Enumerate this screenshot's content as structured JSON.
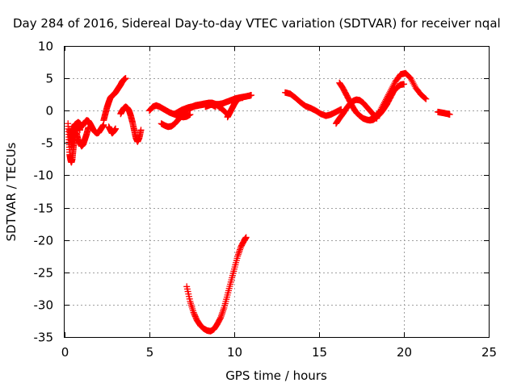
{
  "chart_data": {
    "type": "scatter",
    "title": "Day 284 of 2016, Sidereal Day-to-day VTEC variation (SDTVAR) for receiver nqal",
    "xlabel": "GPS time / hours",
    "ylabel": "SDTVAR / TECUs",
    "xlim": [
      0,
      25
    ],
    "ylim": [
      -35,
      10
    ],
    "xticks": [
      0,
      5,
      10,
      15,
      20,
      25
    ],
    "yticks": [
      10,
      5,
      0,
      -5,
      -10,
      -15,
      -20,
      -25,
      -30,
      -35
    ],
    "grid": true,
    "marker": "plus",
    "color": "#ff0000",
    "series": [
      {
        "x": [
          0.2,
          0.25,
          0.3,
          0.35,
          0.4,
          0.45,
          0.5,
          0.55,
          0.6,
          0.65,
          0.7,
          0.75,
          0.8,
          0.85,
          0.9
        ],
        "y": [
          -2.0,
          -4.5,
          -6.8,
          -7.6,
          -8.0,
          -7.5,
          -6.2,
          -5.0,
          -4.0,
          -3.0,
          -2.5,
          -2.0,
          -2.2,
          -2.5,
          -3.0
        ]
      },
      {
        "x": [
          0.3,
          0.35,
          0.4,
          0.45,
          0.5,
          0.55,
          0.6
        ],
        "y": [
          -3.0,
          -4.2,
          -5.5,
          -4.0,
          -3.2,
          -2.6,
          -2.2
        ]
      },
      {
        "x": [
          0.7,
          0.8,
          0.9,
          1.0,
          1.1,
          1.2,
          1.3,
          1.4
        ],
        "y": [
          -3.5,
          -4.5,
          -5.0,
          -5.5,
          -5.2,
          -4.4,
          -3.6,
          -2.6
        ]
      },
      {
        "x": [
          0.6,
          0.7,
          0.8,
          0.9,
          1.0,
          1.1,
          1.2,
          1.3,
          1.4,
          1.5,
          1.6,
          1.7,
          1.8,
          1.9,
          2.0,
          2.1,
          2.2,
          2.3
        ],
        "y": [
          -2.2,
          -2.0,
          -1.8,
          -2.0,
          -2.4,
          -2.2,
          -1.8,
          -1.5,
          -1.6,
          -2.0,
          -2.5,
          -3.0,
          -3.3,
          -3.5,
          -3.4,
          -3.0,
          -2.6,
          -2.2
        ]
      },
      {
        "x": [
          2.3,
          2.4,
          2.5,
          2.6,
          2.7,
          2.8,
          2.9,
          3.0,
          3.1,
          3.2,
          3.3,
          3.4,
          3.5,
          3.6
        ],
        "y": [
          -1.5,
          -0.5,
          0.5,
          1.3,
          2.0,
          2.3,
          2.5,
          2.8,
          3.2,
          3.6,
          4.0,
          4.5,
          4.8,
          5.0
        ]
      },
      {
        "x": [
          2.6,
          2.7,
          2.8,
          2.9,
          3.0
        ],
        "y": [
          -2.5,
          -3.0,
          -3.5,
          -3.2,
          -2.8
        ]
      },
      {
        "x": [
          3.3,
          3.4,
          3.5,
          3.6,
          3.7,
          3.8,
          3.9,
          4.0,
          4.1,
          4.2,
          4.3,
          4.4,
          4.5
        ],
        "y": [
          -0.5,
          0.0,
          0.4,
          0.6,
          0.4,
          0.0,
          -0.8,
          -1.8,
          -3.0,
          -4.2,
          -4.8,
          -4.2,
          -3.0
        ]
      },
      {
        "x": [
          5.0,
          5.2,
          5.4,
          5.6,
          5.8,
          6.0,
          6.2,
          6.4,
          6.6,
          6.8,
          7.0,
          7.2,
          7.4
        ],
        "y": [
          0.0,
          0.6,
          0.8,
          0.6,
          0.3,
          0.0,
          -0.3,
          -0.5,
          -0.7,
          -0.9,
          -1.0,
          -0.9,
          -0.6
        ]
      },
      {
        "x": [
          5.7,
          5.9,
          6.1,
          6.3,
          6.5,
          6.7,
          6.9,
          7.1,
          7.3,
          7.5,
          7.7,
          7.9,
          8.1,
          8.3,
          8.5,
          8.7,
          8.9
        ],
        "y": [
          -2.0,
          -2.3,
          -2.5,
          -2.4,
          -2.0,
          -1.4,
          -0.8,
          -0.2,
          0.3,
          0.5,
          0.7,
          0.8,
          0.9,
          1.0,
          1.0,
          0.9,
          0.6
        ]
      },
      {
        "x": [
          6.5,
          6.7,
          6.9,
          7.1,
          7.3,
          7.5,
          7.7,
          7.9,
          8.1,
          8.3,
          8.5,
          8.7,
          8.9,
          9.1,
          9.3,
          9.5
        ],
        "y": [
          -0.5,
          -0.2,
          0.1,
          0.3,
          0.5,
          0.6,
          0.8,
          0.9,
          1.0,
          1.1,
          1.2,
          1.2,
          1.0,
          0.6,
          0.2,
          -0.3
        ]
      },
      {
        "x": [
          8.3,
          8.5,
          8.7,
          8.9,
          9.1,
          9.3,
          9.5,
          9.7,
          9.9,
          10.1,
          10.3,
          10.5,
          10.7,
          10.9,
          11.0
        ],
        "y": [
          0.6,
          0.8,
          1.0,
          1.0,
          1.0,
          1.1,
          1.3,
          1.5,
          1.7,
          1.9,
          2.0,
          2.1,
          2.2,
          2.3,
          2.4
        ]
      },
      {
        "x": [
          9.6,
          9.7,
          9.8,
          9.9,
          10.0,
          10.1,
          10.2,
          10.3,
          10.4,
          10.5
        ],
        "y": [
          -1.0,
          -0.5,
          0.0,
          0.5,
          1.0,
          1.4,
          1.7,
          1.9,
          2.0,
          2.0
        ]
      },
      {
        "x": [
          7.2,
          7.4,
          7.6,
          7.8,
          8.0,
          8.2,
          8.4,
          8.6,
          8.8,
          9.0,
          9.2,
          9.4,
          9.6,
          9.8,
          10.0,
          10.2,
          10.4,
          10.6,
          10.7
        ],
        "y": [
          -27.2,
          -29.5,
          -31.2,
          -32.4,
          -33.2,
          -33.7,
          -34.0,
          -34.1,
          -33.8,
          -33.0,
          -32.0,
          -30.5,
          -28.5,
          -26.5,
          -24.5,
          -22.5,
          -21.0,
          -20.0,
          -19.6
        ]
      },
      {
        "x": [
          13.0,
          13.3,
          13.6,
          13.9,
          14.2,
          14.5,
          14.8,
          15.1,
          15.4,
          15.7,
          16.0,
          16.3
        ],
        "y": [
          2.8,
          2.6,
          2.0,
          1.3,
          0.7,
          0.4,
          0.0,
          -0.5,
          -0.8,
          -0.6,
          -0.2,
          0.2
        ]
      },
      {
        "x": [
          16.2,
          16.4,
          16.6,
          16.8,
          17.0,
          17.2,
          17.4,
          17.6,
          17.8,
          18.0,
          18.2,
          18.4,
          18.6,
          18.8,
          19.0,
          19.2,
          19.4,
          19.6,
          19.8,
          20.0
        ],
        "y": [
          4.3,
          3.5,
          2.5,
          1.5,
          0.5,
          -0.3,
          -0.8,
          -1.2,
          -1.4,
          -1.5,
          -1.4,
          -1.0,
          -0.5,
          0.2,
          1.0,
          2.0,
          3.0,
          3.6,
          4.0,
          4.1
        ]
      },
      {
        "x": [
          16.0,
          16.2,
          16.4,
          16.6,
          16.8,
          17.0,
          17.2,
          17.4,
          17.6,
          17.8,
          18.0,
          18.2,
          18.4
        ],
        "y": [
          -2.0,
          -1.2,
          -0.5,
          0.3,
          1.0,
          1.5,
          1.7,
          1.6,
          1.2,
          0.6,
          0.0,
          -0.6,
          -1.2
        ]
      },
      {
        "x": [
          18.0,
          18.3,
          18.6,
          18.9,
          19.2,
          19.5,
          19.8,
          20.1,
          20.4,
          20.7,
          21.0,
          21.3
        ],
        "y": [
          -1.4,
          -1.0,
          0.0,
          1.5,
          3.0,
          4.5,
          5.6,
          5.8,
          5.0,
          3.5,
          2.5,
          1.8
        ]
      },
      {
        "x": [
          22.0,
          22.2,
          22.4,
          22.6,
          22.7
        ],
        "y": [
          -0.2,
          -0.3,
          -0.4,
          -0.5,
          -0.6
        ]
      }
    ]
  }
}
